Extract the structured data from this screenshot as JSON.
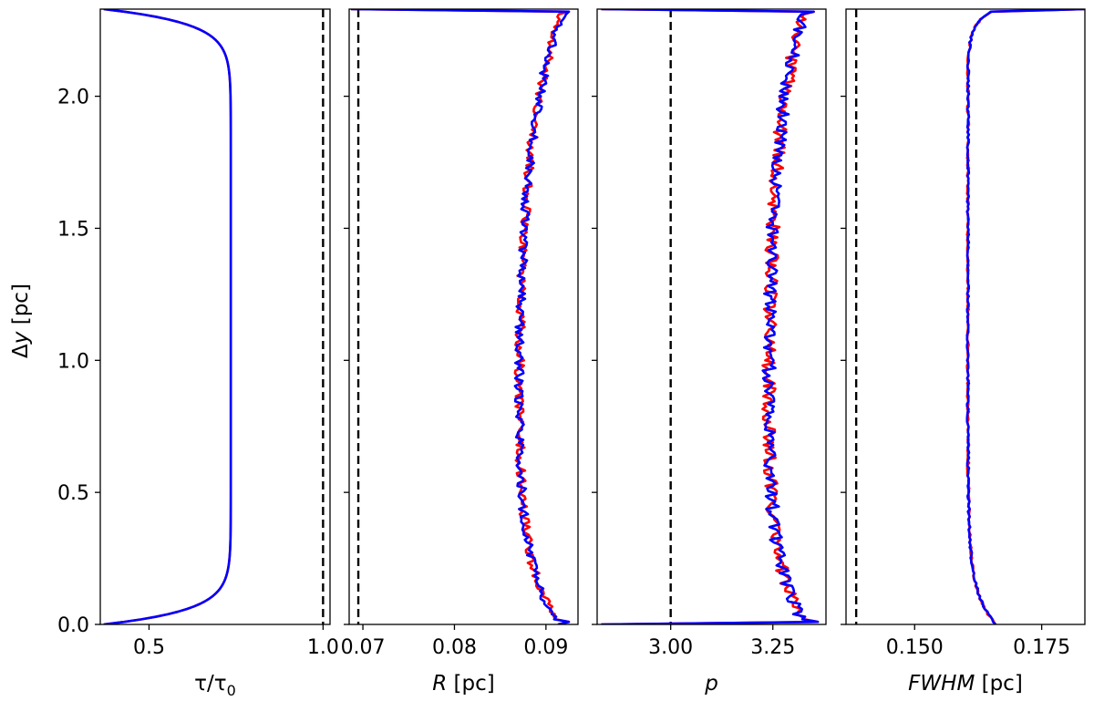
{
  "chart_data": {
    "type": "line",
    "shared_y": {
      "label_prefix": "Δ",
      "label_var": "y",
      "label_unit": " [pc]",
      "ylim": [
        0.0,
        2.33
      ],
      "ticks": [
        0.0,
        0.5,
        1.0,
        1.5,
        2.0
      ],
      "tick_labels": [
        "0.0",
        "0.5",
        "1.0",
        "1.5",
        "2.0"
      ]
    },
    "series_colors": {
      "red": "#ff0000",
      "blue": "#0000ff",
      "reference": "#000000"
    },
    "panels": [
      {
        "id": "tau",
        "xlabel_html": "τ/τ₀",
        "xlabel_parts": [
          "τ",
          "/τ",
          "0"
        ],
        "xlim": [
          0.36,
          1.02
        ],
        "xticks": [
          0.5,
          1.0
        ],
        "xtick_labels": [
          "0.5",
          "1.0"
        ],
        "reference_x": 1.0,
        "profile": {
          "kind": "tau",
          "plateau": 0.735,
          "start": 0.37,
          "end": 0.37,
          "noise": 0.0
        },
        "series": [
          {
            "name": "red",
            "color": "#ff0000"
          },
          {
            "name": "blue",
            "color": "#0000ff"
          }
        ]
      },
      {
        "id": "R",
        "xlabel_var": "R",
        "xlabel_unit": " [pc]",
        "xlim": [
          0.0685,
          0.0935
        ],
        "xticks": [
          0.07,
          0.08,
          0.09
        ],
        "xtick_labels": [
          "0.07",
          "0.08",
          "0.09"
        ],
        "reference_x": 0.0695,
        "profile": {
          "kind": "noisy",
          "mid": 0.0868,
          "bottom": 0.0915,
          "top": 0.092,
          "noise": 0.0005,
          "end_bottom": 0.0925,
          "end_top": 0.0925,
          "top_spike": 0.0687
        },
        "series": [
          {
            "name": "red",
            "color": "#ff0000"
          },
          {
            "name": "blue",
            "color": "#0000ff"
          }
        ]
      },
      {
        "id": "p",
        "xlabel_var": "p",
        "xlabel_unit": "",
        "xlim": [
          2.82,
          3.38
        ],
        "xticks": [
          3.0,
          3.25
        ],
        "xtick_labels": [
          "3.00",
          "3.25"
        ],
        "reference_x": 3.0,
        "profile": {
          "kind": "noisy",
          "mid": 3.235,
          "bottom": 3.33,
          "top": 3.33,
          "noise": 0.016,
          "end_bottom": 3.36,
          "end_top": 3.35,
          "bottom_spike": 2.83,
          "top_spike": 2.83
        },
        "series": [
          {
            "name": "red",
            "color": "#ff0000"
          },
          {
            "name": "blue",
            "color": "#0000ff"
          }
        ]
      },
      {
        "id": "FWHM",
        "xlabel_var": "FWHM",
        "xlabel_unit": " [pc]",
        "xlim": [
          0.1365,
          0.1835
        ],
        "xticks": [
          0.15,
          0.175
        ],
        "xtick_labels": [
          "0.150",
          "0.175"
        ],
        "reference_x": 0.1385,
        "profile": {
          "kind": "fwhm",
          "mid": 0.1605,
          "bottom": 0.166,
          "top": 0.166,
          "noise": 0.0002,
          "top_spike": 0.1835
        },
        "series": [
          {
            "name": "red",
            "color": "#ff0000"
          },
          {
            "name": "blue",
            "color": "#0000ff"
          }
        ]
      }
    ]
  }
}
